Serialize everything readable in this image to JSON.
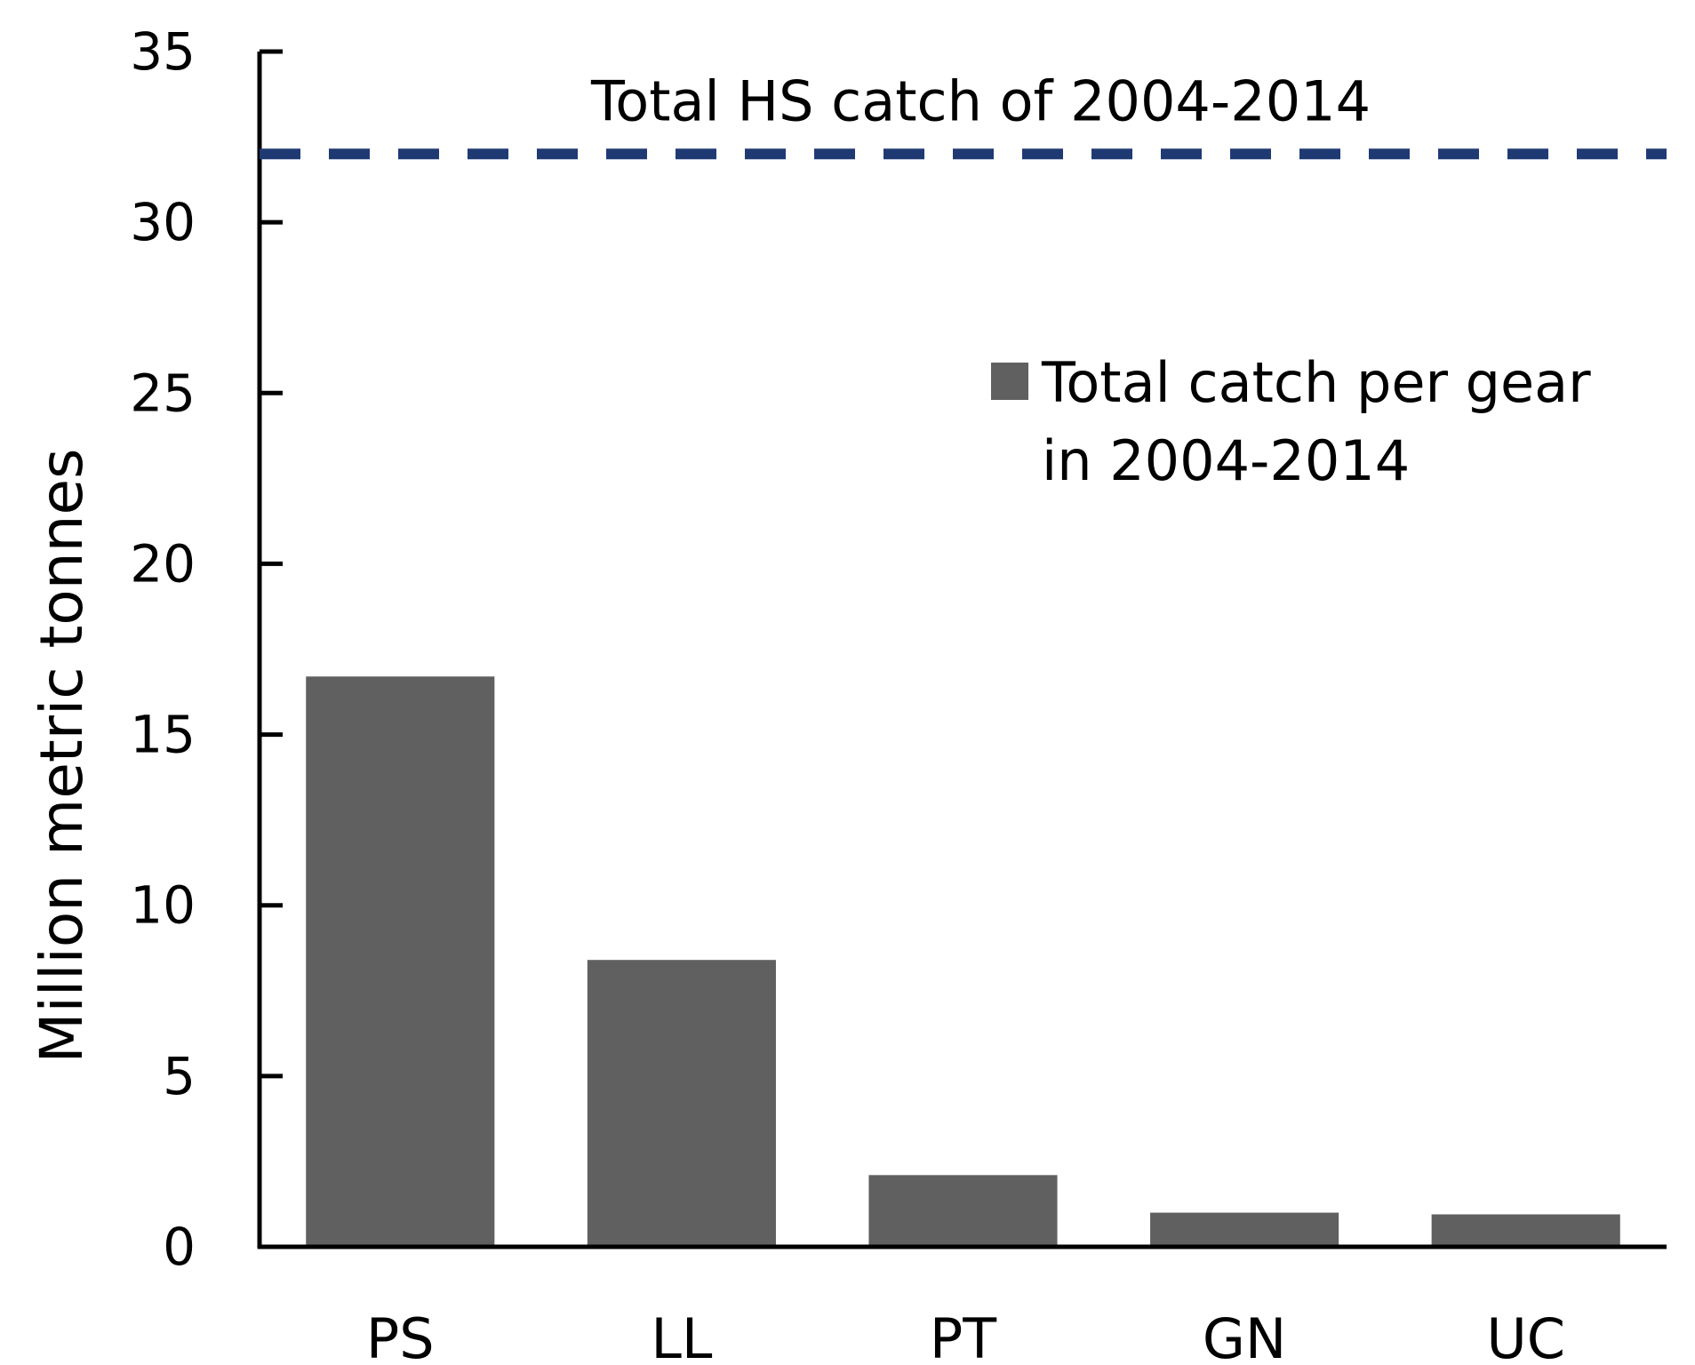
{
  "chart_data": {
    "type": "bar",
    "categories": [
      "PS",
      "LL",
      "PT",
      "GN",
      "UC"
    ],
    "series": [
      {
        "name": "Total catch per gear in 2004-2014",
        "values": [
          16.7,
          8.4,
          2.1,
          1.0,
          0.95
        ]
      }
    ],
    "ylabel": "Million metric tonnes",
    "xlabel": "",
    "ylim": [
      0,
      35
    ],
    "yticks": [
      0,
      5,
      10,
      15,
      20,
      25,
      30,
      35
    ],
    "reference_line": {
      "label": "Total HS catch of 2004-2014",
      "value": 32,
      "style": "dashed"
    },
    "legend": {
      "position": "top-right",
      "lines": [
        "Total catch per gear",
        "in 2004-2014"
      ]
    },
    "grid": false,
    "colors": {
      "bar": "#606060",
      "reference_line": "#1f3a73",
      "axis": "#000000"
    }
  }
}
